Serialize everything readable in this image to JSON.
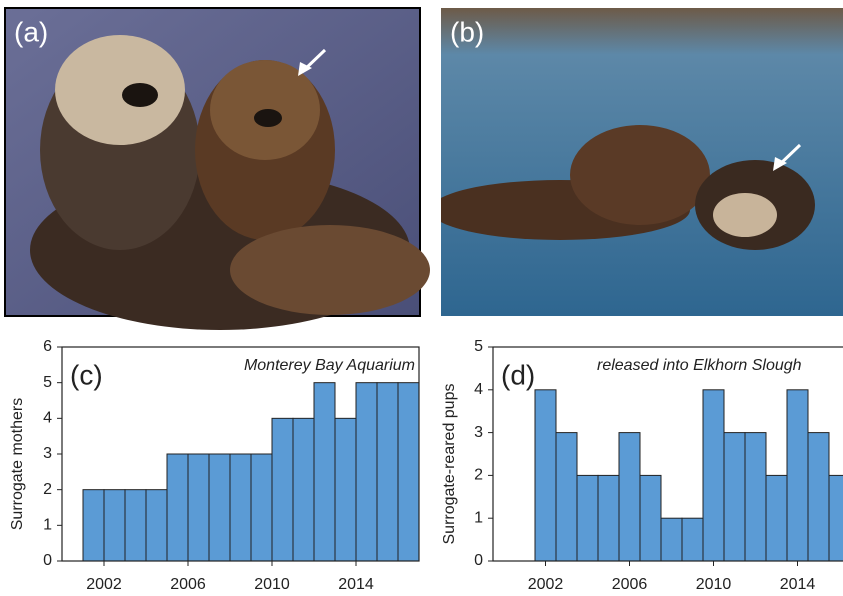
{
  "panels": {
    "a": "(a)",
    "b": "(b)"
  },
  "chart_data": [
    {
      "type": "histogram",
      "panel_label": "(c)",
      "annotation": "Monterey Bay Aquarium",
      "ylabel": "Surrogate mothers",
      "bins": [
        2001,
        2002,
        2003,
        2004,
        2005,
        2006,
        2007,
        2008,
        2009,
        2010,
        2011,
        2012,
        2013,
        2014,
        2015,
        2016,
        2017
      ],
      "values": [
        2,
        2,
        2,
        2,
        3,
        3,
        3,
        3,
        3,
        4,
        4,
        5,
        4,
        5,
        5,
        5
      ],
      "color": "#5b9bd5",
      "xlim": [
        2000,
        2017
      ],
      "xticks": [
        2002,
        2006,
        2010,
        2014
      ],
      "ylim": [
        0,
        6
      ],
      "yticks": [
        0,
        1,
        2,
        3,
        4,
        5,
        6
      ]
    },
    {
      "type": "bar",
      "panel_label": "(d)",
      "annotation": "released into Elkhorn Slough",
      "ylabel": "Surrogate-reared pups",
      "x": [
        2002,
        2003,
        2004,
        2005,
        2006,
        2007,
        2008,
        2009,
        2010,
        2011,
        2012,
        2013,
        2014,
        2015,
        2016
      ],
      "values": [
        4,
        3,
        2,
        2,
        3,
        2,
        1,
        1,
        4,
        3,
        3,
        2,
        4,
        3,
        2
      ],
      "color": "#5b9bd5",
      "xlim": [
        1999.5,
        2016.5
      ],
      "xticks": [
        2002,
        2006,
        2010,
        2014
      ],
      "ylim": [
        0,
        5
      ],
      "yticks": [
        0,
        1,
        2,
        3,
        4,
        5
      ]
    }
  ]
}
